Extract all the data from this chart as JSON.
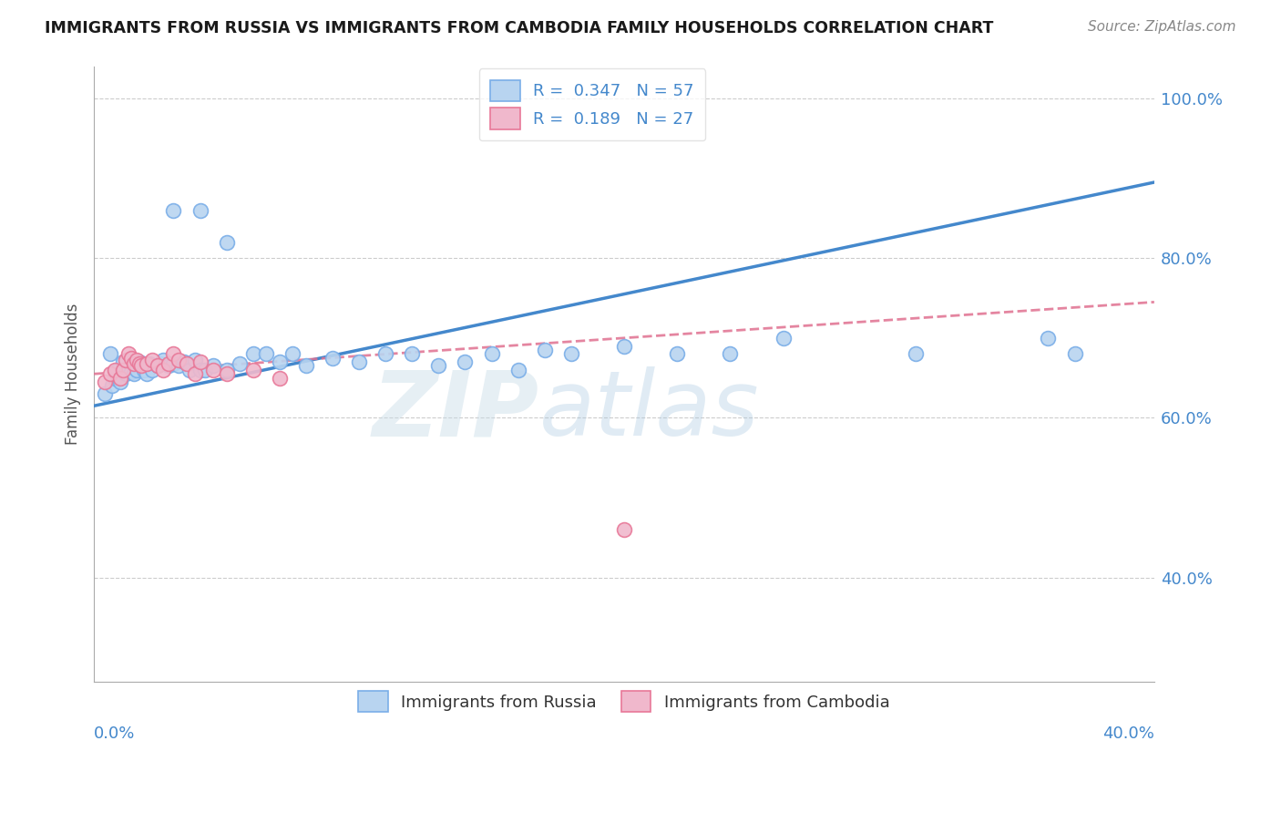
{
  "title": "IMMIGRANTS FROM RUSSIA VS IMMIGRANTS FROM CAMBODIA FAMILY HOUSEHOLDS CORRELATION CHART",
  "source": "Source: ZipAtlas.com",
  "ylabel": "Family Households",
  "ylabel_right_ticks": [
    "40.0%",
    "60.0%",
    "80.0%",
    "100.0%"
  ],
  "ylabel_right_vals": [
    0.4,
    0.6,
    0.8,
    1.0
  ],
  "xmin": 0.0,
  "xmax": 0.4,
  "ymin": 0.27,
  "ymax": 1.04,
  "legend_r1": "0.347",
  "legend_n1": "57",
  "legend_r2": "0.189",
  "legend_n2": "27",
  "color_russia": "#b8d4f0",
  "color_russia_edge": "#7aaee8",
  "color_cambodia": "#f0b8cc",
  "color_cambodia_edge": "#e87898",
  "color_russia_line": "#4488cc",
  "color_cambodia_line": "#e07090",
  "color_blue_text": "#4488cc",
  "watermark_color": "#d0e4f4",
  "russia_x": [
    0.004,
    0.006,
    0.007,
    0.008,
    0.009,
    0.01,
    0.011,
    0.012,
    0.013,
    0.014,
    0.015,
    0.016,
    0.017,
    0.018,
    0.019,
    0.02,
    0.021,
    0.022,
    0.024,
    0.025,
    0.026,
    0.028,
    0.03,
    0.032,
    0.034,
    0.036,
    0.038,
    0.04,
    0.042,
    0.045,
    0.05,
    0.055,
    0.06,
    0.065,
    0.07,
    0.075,
    0.08,
    0.09,
    0.1,
    0.11,
    0.12,
    0.13,
    0.14,
    0.15,
    0.16,
    0.17,
    0.18,
    0.2,
    0.22,
    0.24,
    0.26,
    0.31,
    0.36,
    0.37,
    0.03,
    0.04,
    0.05
  ],
  "russia_y": [
    0.63,
    0.68,
    0.64,
    0.65,
    0.66,
    0.645,
    0.67,
    0.655,
    0.66,
    0.658,
    0.655,
    0.66,
    0.67,
    0.665,
    0.66,
    0.655,
    0.668,
    0.66,
    0.665,
    0.668,
    0.672,
    0.665,
    0.668,
    0.665,
    0.67,
    0.66,
    0.672,
    0.66,
    0.66,
    0.665,
    0.66,
    0.668,
    0.68,
    0.68,
    0.67,
    0.68,
    0.665,
    0.675,
    0.67,
    0.68,
    0.68,
    0.665,
    0.67,
    0.68,
    0.66,
    0.685,
    0.68,
    0.69,
    0.68,
    0.68,
    0.7,
    0.68,
    0.7,
    0.68,
    0.86,
    0.86,
    0.82
  ],
  "cambodia_x": [
    0.004,
    0.006,
    0.008,
    0.01,
    0.011,
    0.012,
    0.013,
    0.014,
    0.015,
    0.016,
    0.017,
    0.018,
    0.02,
    0.022,
    0.024,
    0.026,
    0.028,
    0.03,
    0.032,
    0.035,
    0.038,
    0.04,
    0.045,
    0.05,
    0.06,
    0.07,
    0.2
  ],
  "cambodia_y": [
    0.645,
    0.655,
    0.66,
    0.65,
    0.66,
    0.672,
    0.68,
    0.675,
    0.668,
    0.672,
    0.668,
    0.665,
    0.668,
    0.672,
    0.665,
    0.66,
    0.668,
    0.68,
    0.672,
    0.668,
    0.655,
    0.67,
    0.66,
    0.655,
    0.66,
    0.65,
    0.46
  ],
  "trendline_russia_x0": 0.0,
  "trendline_russia_y0": 0.615,
  "trendline_russia_x1": 0.4,
  "trendline_russia_y1": 0.895,
  "trendline_cambodia_x0": 0.0,
  "trendline_cambodia_y0": 0.655,
  "trendline_cambodia_x1": 0.4,
  "trendline_cambodia_y1": 0.745
}
